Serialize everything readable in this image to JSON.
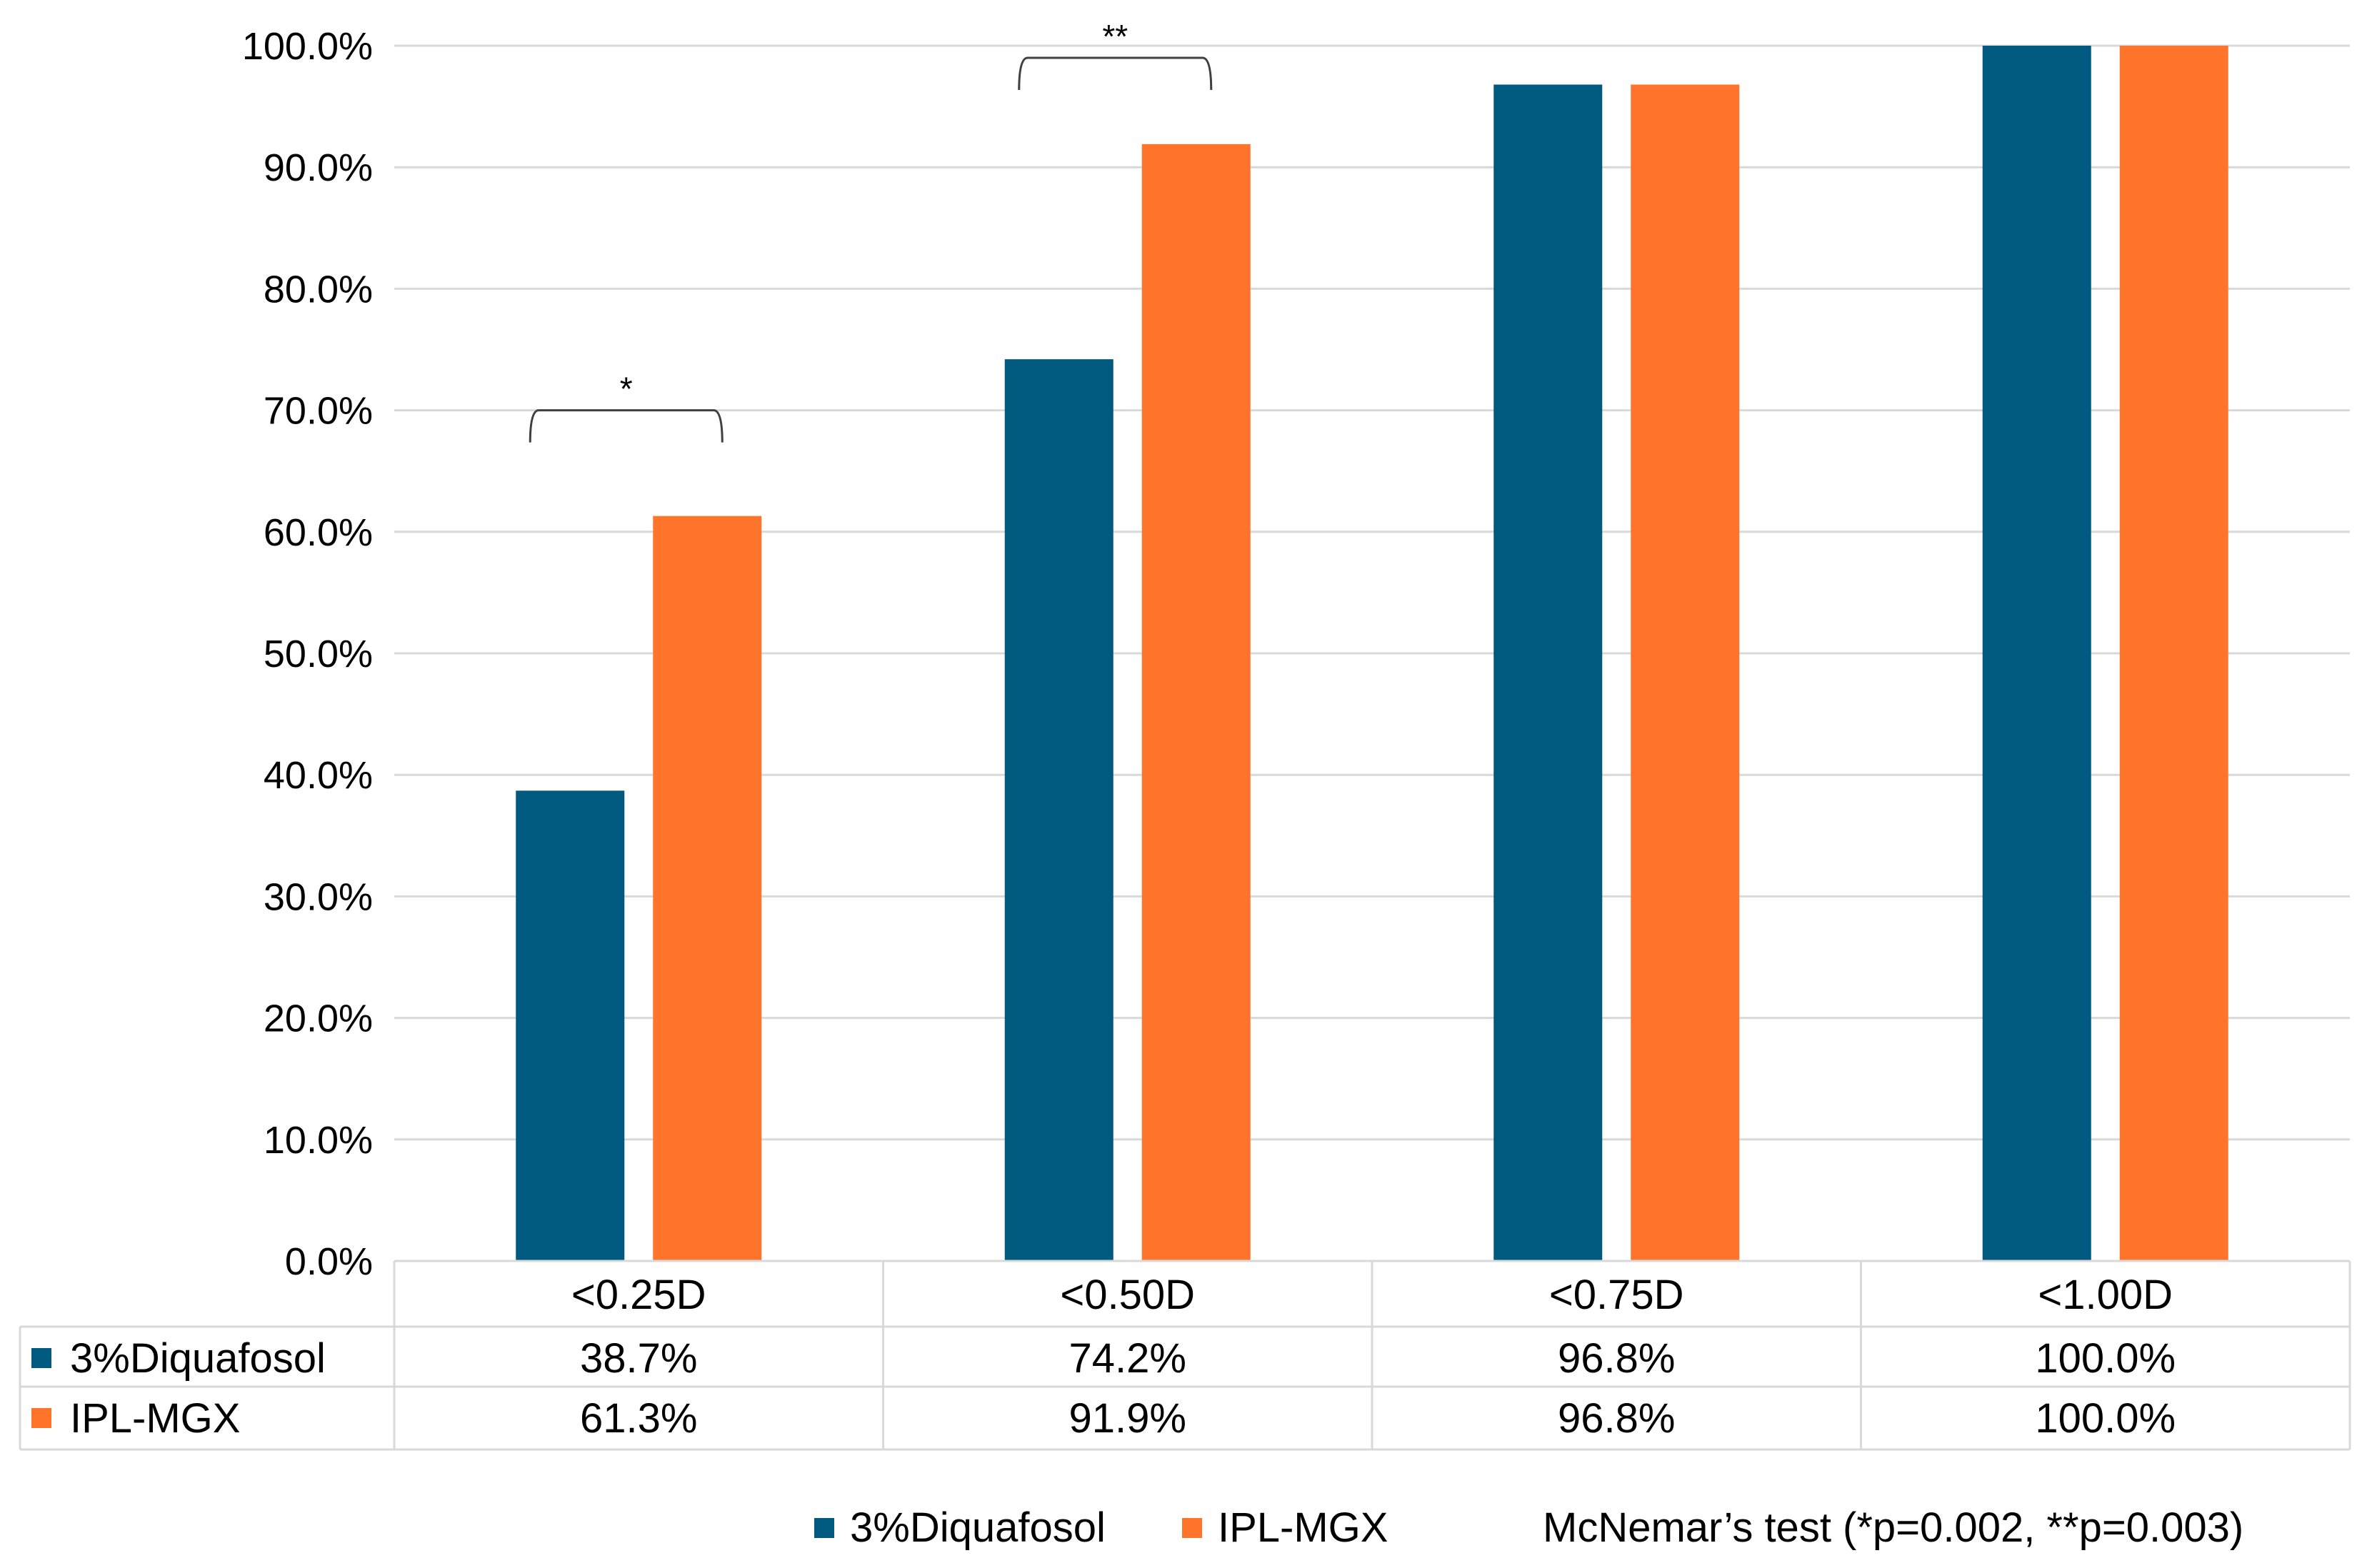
{
  "chart_data": {
    "type": "bar",
    "categories": [
      "<0.25D",
      "<0.50D",
      "<0.75D",
      "<1.00D"
    ],
    "series": [
      {
        "name": "3%Diquafosol",
        "color": "#005A80",
        "values": [
          38.7,
          74.2,
          96.8,
          100.0
        ],
        "labels": [
          "38.7%",
          "74.2%",
          "96.8%",
          "100.0%"
        ]
      },
      {
        "name": "IPL-MGX",
        "color": "#FF742B",
        "values": [
          61.3,
          91.9,
          96.8,
          100.0
        ],
        "labels": [
          "61.3%",
          "91.9%",
          "96.8%",
          "100.0%"
        ]
      }
    ],
    "ylim": [
      0,
      100
    ],
    "yticks": [
      "0.0%",
      "10.0%",
      "20.0%",
      "30.0%",
      "40.0%",
      "50.0%",
      "60.0%",
      "70.0%",
      "80.0%",
      "90.0%",
      "100.0%"
    ],
    "grid": true,
    "data_table": true,
    "significance": [
      {
        "category_index": 0,
        "marker": "*",
        "level": 70
      },
      {
        "category_index": 1,
        "marker": "**",
        "level": 99
      }
    ],
    "legend": {
      "position": "bottom-right",
      "entries": [
        "3%Diquafosol",
        "IPL-MGX"
      ],
      "note": "McNemar’s test (*p=0.002, **p=0.003)"
    }
  }
}
